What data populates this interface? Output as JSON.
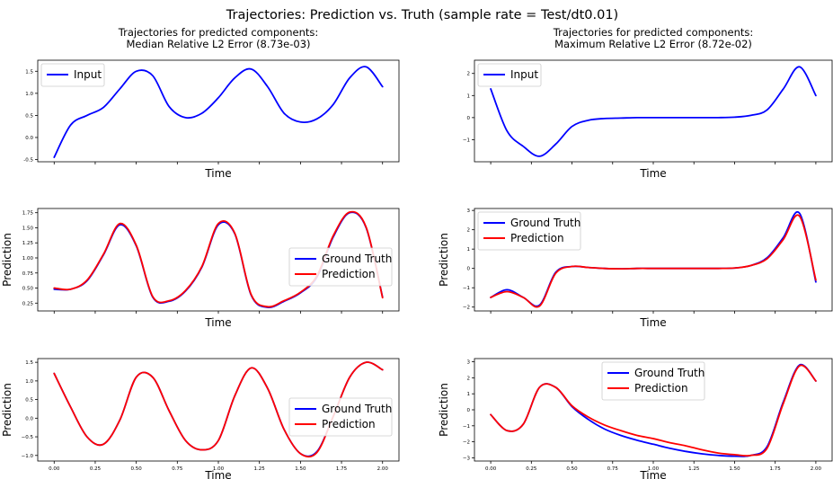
{
  "figure": {
    "suptitle": "Trajectories: Prediction vs. Truth (sample rate = Test/dt0.01)"
  },
  "colors": {
    "truth": "#0000ff",
    "prediction": "#ff0000",
    "input": "#0000ff",
    "axes": "#000000"
  },
  "chart_data": [
    {
      "type": "line",
      "title": "Trajectories for predicted components:\nMedian Relative L2 Error (8.73e-03)",
      "xlabel": "Time",
      "ylabel": "",
      "xlim": [
        -0.1,
        2.1
      ],
      "ylim": [
        -0.55,
        1.75
      ],
      "yticks": [
        -0.5,
        0.0,
        0.5,
        1.0,
        1.5
      ],
      "ytick_labels": [
        "-0.5",
        "0.0",
        "0.5",
        "1.0",
        "1.5"
      ],
      "xticks": [
        0.0,
        0.25,
        0.5,
        0.75,
        1.0,
        1.25,
        1.5,
        1.75,
        2.0
      ],
      "xtick_labels": [],
      "legend": "top-left",
      "x": [
        0.0,
        0.1,
        0.2,
        0.3,
        0.4,
        0.5,
        0.6,
        0.7,
        0.8,
        0.9,
        1.0,
        1.1,
        1.2,
        1.3,
        1.4,
        1.5,
        1.6,
        1.7,
        1.8,
        1.9,
        2.0
      ],
      "series": [
        {
          "name": "Input",
          "color": "#0000ff",
          "values": [
            -0.45,
            0.28,
            0.5,
            0.68,
            1.1,
            1.5,
            1.4,
            0.7,
            0.45,
            0.55,
            0.9,
            1.35,
            1.55,
            1.15,
            0.55,
            0.35,
            0.42,
            0.75,
            1.35,
            1.6,
            1.15
          ]
        }
      ]
    },
    {
      "type": "line",
      "title": "Trajectories for predicted components:\nMaximum Relative L2 Error (8.72e-02)",
      "xlabel": "Time",
      "ylabel": "",
      "xlim": [
        -0.1,
        2.1
      ],
      "ylim": [
        -2.0,
        2.6
      ],
      "yticks": [
        -1,
        0,
        1,
        2
      ],
      "ytick_labels": [
        "−1",
        "0",
        "1",
        "2"
      ],
      "xticks": [
        0.0,
        0.25,
        0.5,
        0.75,
        1.0,
        1.25,
        1.5,
        1.75,
        2.0
      ],
      "xtick_labels": [],
      "legend": "top-left",
      "x": [
        0.0,
        0.1,
        0.2,
        0.3,
        0.4,
        0.5,
        0.6,
        0.7,
        0.8,
        0.9,
        1.0,
        1.1,
        1.2,
        1.3,
        1.4,
        1.5,
        1.6,
        1.7,
        1.8,
        1.9,
        2.0
      ],
      "series": [
        {
          "name": "Input",
          "color": "#0000ff",
          "values": [
            1.3,
            -0.6,
            -1.3,
            -1.75,
            -1.2,
            -0.4,
            -0.12,
            -0.04,
            -0.02,
            0.0,
            0.0,
            0.0,
            0.0,
            0.0,
            0.0,
            0.02,
            0.1,
            0.35,
            1.3,
            2.3,
            1.0
          ]
        }
      ]
    },
    {
      "type": "line",
      "title": "",
      "xlabel": "Time",
      "ylabel": "Prediction",
      "xlim": [
        -0.1,
        2.1
      ],
      "ylim": [
        0.12,
        1.82
      ],
      "yticks": [
        0.25,
        0.5,
        0.75,
        1.0,
        1.25,
        1.5,
        1.75
      ],
      "ytick_labels": [
        "0.25",
        "0.50",
        "0.75",
        "1.00",
        "1.25",
        "1.50",
        "1.75"
      ],
      "xticks": [
        0.0,
        0.25,
        0.5,
        0.75,
        1.0,
        1.25,
        1.5,
        1.75,
        2.0
      ],
      "xtick_labels": [],
      "legend": "center-right",
      "x": [
        0.0,
        0.1,
        0.2,
        0.3,
        0.4,
        0.5,
        0.6,
        0.7,
        0.8,
        0.9,
        1.0,
        1.1,
        1.2,
        1.3,
        1.4,
        1.5,
        1.6,
        1.7,
        1.8,
        1.9,
        2.0
      ],
      "series": [
        {
          "name": "Ground Truth",
          "color": "#0000ff",
          "values": [
            0.48,
            0.48,
            0.62,
            1.05,
            1.55,
            1.2,
            0.35,
            0.28,
            0.45,
            0.85,
            1.55,
            1.4,
            0.38,
            0.18,
            0.28,
            0.42,
            0.68,
            1.35,
            1.75,
            1.5,
            0.35
          ]
        },
        {
          "name": "Prediction",
          "color": "#ff0000",
          "values": [
            0.5,
            0.48,
            0.63,
            1.06,
            1.57,
            1.21,
            0.36,
            0.29,
            0.46,
            0.86,
            1.57,
            1.41,
            0.39,
            0.19,
            0.29,
            0.43,
            0.7,
            1.37,
            1.76,
            1.51,
            0.34
          ]
        }
      ]
    },
    {
      "type": "line",
      "title": "",
      "xlabel": "Time",
      "ylabel": "Prediction",
      "xlim": [
        -0.1,
        2.1
      ],
      "ylim": [
        -2.2,
        3.1
      ],
      "yticks": [
        -2,
        -1,
        0,
        1,
        2,
        3
      ],
      "ytick_labels": [
        "−2",
        "−1",
        "0",
        "1",
        "2",
        "3"
      ],
      "xticks": [
        0.0,
        0.25,
        0.5,
        0.75,
        1.0,
        1.25,
        1.5,
        1.75,
        2.0
      ],
      "xtick_labels": [],
      "legend": "top-left",
      "x": [
        0.0,
        0.1,
        0.2,
        0.3,
        0.4,
        0.5,
        0.6,
        0.7,
        0.8,
        0.9,
        1.0,
        1.1,
        1.2,
        1.3,
        1.4,
        1.5,
        1.6,
        1.7,
        1.8,
        1.9,
        2.0
      ],
      "series": [
        {
          "name": "Ground Truth",
          "color": "#0000ff",
          "values": [
            -1.5,
            -1.1,
            -1.5,
            -1.9,
            -0.2,
            0.1,
            0.05,
            0.0,
            -0.02,
            0.0,
            0.0,
            0.0,
            0.0,
            0.0,
            0.0,
            0.02,
            0.15,
            0.55,
            1.6,
            2.85,
            -0.7
          ]
        },
        {
          "name": "Prediction",
          "color": "#ff0000",
          "values": [
            -1.5,
            -1.2,
            -1.5,
            -1.95,
            -0.25,
            0.1,
            0.05,
            0.0,
            -0.02,
            0.0,
            0.0,
            0.0,
            0.0,
            0.0,
            0.0,
            0.02,
            0.15,
            0.5,
            1.5,
            2.7,
            -0.6
          ]
        }
      ]
    },
    {
      "type": "line",
      "title": "",
      "xlabel": "Time",
      "ylabel": "Prediction",
      "xlim": [
        -0.1,
        2.1
      ],
      "ylim": [
        -1.15,
        1.6
      ],
      "yticks": [
        -1.0,
        -0.5,
        0.0,
        0.5,
        1.0,
        1.5
      ],
      "ytick_labels": [
        "−1.0",
        "−0.5",
        "0.0",
        "0.5",
        "1.0",
        "1.5"
      ],
      "xticks": [
        0.0,
        0.25,
        0.5,
        0.75,
        1.0,
        1.25,
        1.5,
        1.75,
        2.0
      ],
      "xtick_labels": [
        "0.00",
        "0.25",
        "0.50",
        "0.75",
        "1.00",
        "1.25",
        "1.50",
        "1.75",
        "2.00"
      ],
      "legend": "center-right",
      "x": [
        0.0,
        0.1,
        0.2,
        0.3,
        0.4,
        0.5,
        0.6,
        0.7,
        0.8,
        0.9,
        1.0,
        1.1,
        1.2,
        1.3,
        1.4,
        1.5,
        1.6,
        1.7,
        1.8,
        1.9,
        2.0
      ],
      "series": [
        {
          "name": "Ground Truth",
          "color": "#0000ff",
          "values": [
            1.2,
            0.3,
            -0.5,
            -0.7,
            -0.05,
            1.1,
            1.1,
            0.2,
            -0.6,
            -0.85,
            -0.6,
            0.6,
            1.35,
            0.8,
            -0.3,
            -0.95,
            -0.9,
            0.05,
            1.1,
            1.5,
            1.3
          ]
        },
        {
          "name": "Prediction",
          "color": "#ff0000",
          "values": [
            1.2,
            0.3,
            -0.5,
            -0.7,
            -0.05,
            1.1,
            1.1,
            0.2,
            -0.6,
            -0.85,
            -0.6,
            0.6,
            1.35,
            0.8,
            -0.3,
            -0.95,
            -0.92,
            0.05,
            1.1,
            1.5,
            1.3
          ]
        }
      ]
    },
    {
      "type": "line",
      "title": "",
      "xlabel": "Time",
      "ylabel": "Prediction",
      "xlim": [
        -0.1,
        2.1
      ],
      "ylim": [
        -3.2,
        3.2
      ],
      "yticks": [
        -3,
        -2,
        -1,
        0,
        1,
        2,
        3
      ],
      "ytick_labels": [
        "−3",
        "−2",
        "−1",
        "0",
        "1",
        "2",
        "3"
      ],
      "xticks": [
        0.0,
        0.25,
        0.5,
        0.75,
        1.0,
        1.25,
        1.5,
        1.75,
        2.0
      ],
      "xtick_labels": [
        "0.00",
        "0.25",
        "0.50",
        "0.75",
        "1.00",
        "1.25",
        "1.50",
        "1.75",
        "2.00"
      ],
      "legend": "top-center",
      "x": [
        0.0,
        0.1,
        0.2,
        0.3,
        0.4,
        0.5,
        0.6,
        0.7,
        0.8,
        0.9,
        1.0,
        1.1,
        1.2,
        1.3,
        1.4,
        1.5,
        1.6,
        1.7,
        1.8,
        1.9,
        2.0
      ],
      "series": [
        {
          "name": "Ground Truth",
          "color": "#0000ff",
          "values": [
            -0.3,
            -1.3,
            -0.9,
            1.4,
            1.4,
            0.2,
            -0.6,
            -1.2,
            -1.6,
            -1.9,
            -2.15,
            -2.4,
            -2.6,
            -2.75,
            -2.85,
            -2.9,
            -2.85,
            -2.3,
            0.5,
            2.8,
            1.8
          ]
        },
        {
          "name": "Prediction",
          "color": "#ff0000",
          "values": [
            -0.3,
            -1.3,
            -0.9,
            1.4,
            1.4,
            0.25,
            -0.45,
            -0.95,
            -1.3,
            -1.6,
            -1.8,
            -2.05,
            -2.25,
            -2.5,
            -2.7,
            -2.8,
            -2.85,
            -2.4,
            0.4,
            2.75,
            1.8
          ]
        }
      ]
    }
  ]
}
